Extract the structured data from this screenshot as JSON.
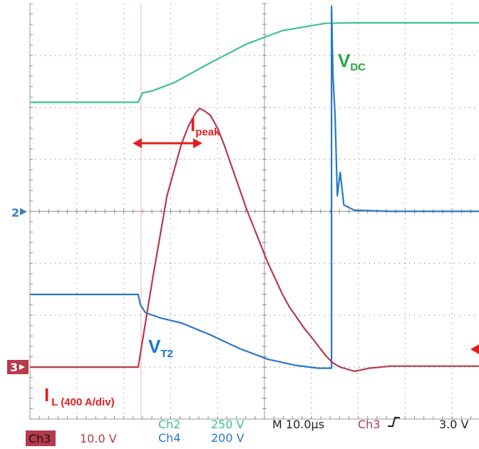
{
  "chart_data": {
    "type": "line",
    "title": "",
    "x_unit": "µs",
    "x_range": [
      -5,
      60
    ],
    "y_divisions": [
      0,
      8
    ],
    "grid": true,
    "series": [
      {
        "name": "VDC",
        "channel": "Ch2",
        "color": "#3cc392",
        "x": [
          -5,
          10,
          10.6,
          12,
          15,
          20,
          25,
          30,
          36,
          40,
          45,
          50,
          55,
          60
        ],
        "y": [
          5.1,
          5.1,
          5.28,
          5.32,
          5.48,
          5.86,
          6.22,
          6.48,
          6.62,
          6.63,
          6.63,
          6.63,
          6.63,
          6.63
        ]
      },
      {
        "name": "VT2",
        "channel": "Ch4",
        "color": "#2979c6",
        "x": [
          -5,
          10,
          10.3,
          11,
          13,
          16,
          20,
          24,
          28,
          32,
          35,
          36.8,
          36.8,
          37.0,
          37.3,
          37.6,
          38,
          38.5,
          40,
          45,
          50,
          55,
          60
        ],
        "y": [
          1.4,
          1.4,
          1.2,
          1.05,
          0.95,
          0.85,
          0.62,
          0.36,
          0.15,
          0.03,
          -0.02,
          -0.02,
          6.95,
          5.6,
          4.8,
          3.3,
          3.75,
          3.12,
          3.02,
          3.0,
          3.0,
          3.0,
          3.0
        ]
      },
      {
        "name": "IL",
        "channel": "Ch3",
        "color": "#b63a4b",
        "x": [
          -5,
          10,
          11,
          12,
          13,
          14,
          16,
          17,
          18,
          18.5,
          19,
          20,
          21,
          22,
          23,
          24,
          25,
          26,
          27,
          28,
          29,
          30,
          31,
          32,
          33,
          34,
          35,
          36,
          37,
          38,
          40,
          42,
          45,
          50,
          55,
          60
        ],
        "y": [
          0.0,
          0.0,
          0.85,
          1.7,
          2.5,
          3.3,
          4.3,
          4.65,
          4.9,
          4.98,
          4.95,
          4.85,
          4.6,
          4.25,
          3.85,
          3.45,
          3.05,
          2.7,
          2.35,
          2.0,
          1.7,
          1.4,
          1.15,
          0.95,
          0.75,
          0.58,
          0.4,
          0.22,
          0.08,
          0.0,
          -0.08,
          -0.02,
          0.02,
          0.02,
          0.02,
          0.02
        ]
      }
    ],
    "annotations": {
      "vdc": {
        "text": "V",
        "sub": "DC",
        "color": "#27a844"
      },
      "ipeak": {
        "text": "I",
        "sub": "peak",
        "color": "#e02020"
      },
      "vt2": {
        "text": "V",
        "sub": "T2",
        "color": "#1976d2"
      },
      "il": {
        "text": "I",
        "sub": "L (400 A/div)",
        "color": "#e02020"
      }
    },
    "markers": {
      "ch2_level": "2",
      "ch3_level": "3"
    },
    "readout": {
      "ch2_label": "Ch2",
      "ch2_scale": "250 V",
      "ch4_label": "Ch4",
      "ch4_scale": "200 V",
      "ch3_label": "Ch3",
      "ch3_scale": "10.0 V",
      "timebase": "M 10.0µs",
      "trigger_source": "Ch3",
      "trigger_level": "3.0 V"
    }
  }
}
